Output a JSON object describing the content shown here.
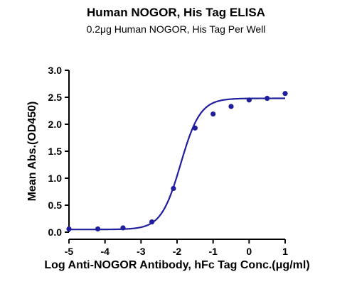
{
  "title": "Human NOGOR, His Tag ELISA",
  "subtitle": "0.2μg Human NOGOR, His Tag Per Well",
  "chart_data": {
    "type": "scatter",
    "xlabel": "Log Anti-NOGOR Antibody, hFc Tag Conc.(μg/ml)",
    "ylabel": "Mean Abs.(OD450)",
    "xlim": [
      -5,
      1
    ],
    "ylim": [
      0,
      3
    ],
    "x_ticks": [
      -5,
      -4,
      -3,
      -2,
      -1,
      0,
      1
    ],
    "y_ticks": [
      "0.0",
      "0.5",
      "1.0",
      "1.5",
      "2.0",
      "2.5",
      "3.0"
    ],
    "grid": false,
    "series": [
      {
        "points": [
          {
            "x": -5.0,
            "y": 0.06
          },
          {
            "x": -4.2,
            "y": 0.06
          },
          {
            "x": -3.5,
            "y": 0.08
          },
          {
            "x": -2.7,
            "y": 0.19
          },
          {
            "x": -2.1,
            "y": 0.81
          },
          {
            "x": -1.5,
            "y": 1.93
          },
          {
            "x": -1.0,
            "y": 2.19
          },
          {
            "x": -0.5,
            "y": 2.33
          },
          {
            "x": 0.0,
            "y": 2.45
          },
          {
            "x": 0.5,
            "y": 2.48
          },
          {
            "x": 1.0,
            "y": 2.57
          }
        ],
        "fit": {
          "model": "4PL",
          "bottom": 0.05,
          "top": 2.48,
          "logEC50": -1.9,
          "hill": 1.6
        }
      }
    ],
    "colors": {
      "series": "#1f1f9e",
      "axis": "#000000"
    }
  }
}
